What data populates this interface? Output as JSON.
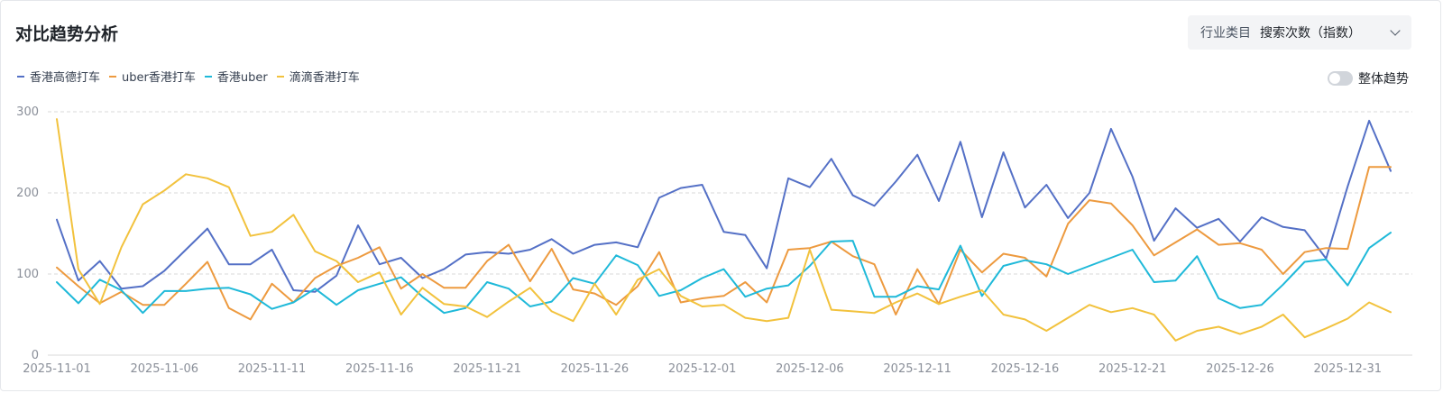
{
  "header": {
    "title": "对比趋势分析",
    "selector_category": "行业类目",
    "selector_value": "搜索次数（指数）"
  },
  "toggle": {
    "label": "整体趋势"
  },
  "chart_data": {
    "type": "line",
    "title": "对比趋势分析",
    "xlabel": "",
    "ylabel": "",
    "ylim": [
      0,
      300
    ],
    "yticks": [
      0,
      100,
      200,
      300
    ],
    "grid": true,
    "legend_position": "top-left",
    "x": [
      "2025-11-01",
      "2025-11-02",
      "2025-11-03",
      "2025-11-04",
      "2025-11-05",
      "2025-11-06",
      "2025-11-07",
      "2025-11-08",
      "2025-11-09",
      "2025-11-10",
      "2025-11-11",
      "2025-11-12",
      "2025-11-13",
      "2025-11-14",
      "2025-11-15",
      "2025-11-16",
      "2025-11-17",
      "2025-11-18",
      "2025-11-19",
      "2025-11-20",
      "2025-11-21",
      "2025-11-22",
      "2025-11-23",
      "2025-11-24",
      "2025-11-25",
      "2025-11-26",
      "2025-11-27",
      "2025-11-28",
      "2025-11-29",
      "2025-11-30",
      "2025-12-01",
      "2025-12-02",
      "2025-12-03",
      "2025-12-04",
      "2025-12-05",
      "2025-12-06",
      "2025-12-07",
      "2025-12-08",
      "2025-12-09",
      "2025-12-10",
      "2025-12-11",
      "2025-12-12",
      "2025-12-13",
      "2025-12-14",
      "2025-12-15",
      "2025-12-16",
      "2025-12-17",
      "2025-12-18",
      "2025-12-19",
      "2025-12-20",
      "2025-12-21",
      "2025-12-22",
      "2025-12-23",
      "2025-12-24",
      "2025-12-25",
      "2025-12-26",
      "2025-12-27",
      "2025-12-28",
      "2025-12-29",
      "2025-12-30",
      "2025-12-31",
      "2026-01-01",
      "2026-01-02"
    ],
    "x_tick_labels": [
      "2025-11-01",
      "2025-11-06",
      "2025-11-11",
      "2025-11-16",
      "2025-11-21",
      "2025-11-26",
      "2025-12-01",
      "2025-12-06",
      "2025-12-11",
      "2025-12-16",
      "2025-12-21",
      "2025-12-26",
      "2025-12-31"
    ],
    "series": [
      {
        "name": "香港高德打车",
        "color": "#5470c6",
        "values": [
          167,
          92,
          116,
          82,
          85,
          104,
          130,
          156,
          112,
          112,
          130,
          80,
          78,
          98,
          160,
          112,
          120,
          95,
          106,
          124,
          127,
          125,
          130,
          143,
          125,
          136,
          139,
          133,
          194,
          206,
          210,
          152,
          148,
          107,
          218,
          207,
          242,
          197,
          184,
          214,
          247,
          190,
          263,
          170,
          250,
          182,
          210,
          169,
          200,
          279,
          220,
          141,
          181,
          157,
          168,
          140,
          170,
          158,
          154,
          119,
          208,
          289,
          227
        ]
      },
      {
        "name": "uber香港打车",
        "color": "#ed9a3f",
        "values": [
          108,
          85,
          64,
          78,
          62,
          62,
          88,
          115,
          58,
          44,
          88,
          65,
          95,
          110,
          120,
          133,
          82,
          100,
          83,
          83,
          116,
          136,
          91,
          131,
          81,
          76,
          62,
          85,
          127,
          65,
          70,
          73,
          90,
          65,
          130,
          132,
          140,
          122,
          112,
          50,
          106,
          63,
          130,
          102,
          125,
          120,
          97,
          162,
          191,
          187,
          160,
          123,
          139,
          155,
          136,
          138,
          130,
          100,
          127,
          132,
          131,
          232,
          232
        ]
      },
      {
        "name": "香港uber",
        "color": "#1fb9d9",
        "values": [
          90,
          64,
          93,
          80,
          52,
          79,
          79,
          82,
          83,
          75,
          57,
          65,
          82,
          62,
          80,
          88,
          96,
          72,
          52,
          58,
          90,
          82,
          60,
          66,
          95,
          88,
          123,
          111,
          73,
          80,
          95,
          106,
          72,
          82,
          86,
          110,
          140,
          141,
          72,
          72,
          85,
          81,
          135,
          73,
          110,
          117,
          112,
          100,
          110,
          120,
          130,
          90,
          92,
          122,
          70,
          58,
          62,
          87,
          115,
          118,
          86,
          132,
          151
        ]
      },
      {
        "name": "滴滴香港打车",
        "color": "#f2c23d",
        "values": [
          291,
          106,
          63,
          133,
          186,
          203,
          223,
          218,
          207,
          147,
          152,
          173,
          128,
          116,
          90,
          102,
          50,
          83,
          63,
          60,
          47,
          66,
          83,
          54,
          42,
          88,
          50,
          93,
          106,
          73,
          60,
          62,
          46,
          42,
          46,
          130,
          56,
          54,
          52,
          65,
          76,
          63,
          72,
          80,
          50,
          44,
          30,
          46,
          62,
          53,
          58,
          50,
          18,
          30,
          35,
          26,
          35,
          50,
          22,
          33,
          45,
          65,
          53
        ]
      }
    ]
  }
}
